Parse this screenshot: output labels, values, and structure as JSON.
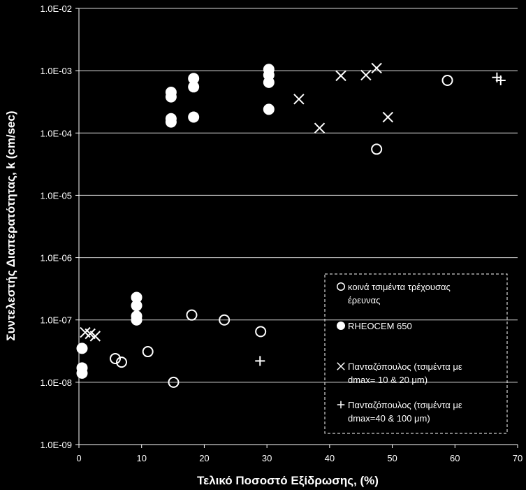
{
  "chart_data": {
    "type": "scatter",
    "title": "",
    "xlabel": "Τελικό Ποσοστό Εξίδρωσης, (%)",
    "ylabel": "Συντελεστής Διαπερατότητας, k (cm/sec)",
    "xlim": [
      0,
      70
    ],
    "ylim": [
      1e-09,
      0.01
    ],
    "yscale": "log",
    "grid": "horizontal",
    "legend_position": "bottom-right",
    "x_ticks": [
      "0",
      "10",
      "20",
      "30",
      "40",
      "50",
      "60",
      "70"
    ],
    "y_ticks": [
      "1.0E-09",
      "1.0E-08",
      "1.0E-07",
      "1.0E-06",
      "1.0E-05",
      "1.0E-04",
      "1.0E-03",
      "1.0E-02"
    ],
    "series": [
      {
        "name": "κοινά τσιμέντα τρέχουσας έρευνας",
        "legend_lines": [
          "κοινά τσιμέντα τρέχουσας",
          "έρευνας"
        ],
        "marker": "open-circle",
        "points": [
          [
            5.8,
            2.4e-08
          ],
          [
            6.8,
            2.1e-08
          ],
          [
            11.0,
            3.1e-08
          ],
          [
            15.1,
            1e-08
          ],
          [
            18.0,
            1.2e-07
          ],
          [
            23.2,
            1e-07
          ],
          [
            29.0,
            6.5e-08
          ],
          [
            47.5,
            5.5e-05
          ],
          [
            58.8,
            0.0007
          ]
        ]
      },
      {
        "name": "RHEOCEM 650",
        "legend_lines": [
          "RHEOCEM 650"
        ],
        "marker": "filled-circle",
        "points": [
          [
            0.5,
            3.5e-08
          ],
          [
            0.5,
            1.7e-08
          ],
          [
            0.5,
            1.4e-08
          ],
          [
            9.2,
            2.3e-07
          ],
          [
            9.2,
            1.7e-07
          ],
          [
            9.2,
            1.15e-07
          ],
          [
            9.2,
            1e-07
          ],
          [
            14.7,
            0.00045
          ],
          [
            14.7,
            0.00038
          ],
          [
            14.7,
            0.00017
          ],
          [
            14.7,
            0.00015
          ],
          [
            18.3,
            0.00075
          ],
          [
            18.3,
            0.00055
          ],
          [
            18.3,
            0.00018
          ],
          [
            30.3,
            0.00105
          ],
          [
            30.3,
            0.00085
          ],
          [
            30.3,
            0.00065
          ],
          [
            30.3,
            0.00024
          ]
        ]
      },
      {
        "name": "Πανταζόπουλος (τσιμέντα με dmax= 10 & 20 μm)",
        "legend_lines": [
          "Πανταζόπουλος (τσιμέντα με",
          "dmax= 10 & 20 μm)"
        ],
        "marker": "x",
        "points": [
          [
            1.0,
            6.3e-08
          ],
          [
            1.8,
            6e-08
          ],
          [
            2.6,
            5.5e-08
          ],
          [
            35.1,
            0.00035
          ],
          [
            38.4,
            0.00012
          ],
          [
            41.8,
            0.00083
          ],
          [
            45.8,
            0.00085
          ],
          [
            47.5,
            0.0011
          ],
          [
            49.3,
            0.00018
          ]
        ]
      },
      {
        "name": "Πανταζόπουλος (τσιμέντα με dmax=40 & 100 μm)",
        "legend_lines": [
          "Πανταζόπουλος (τσιμέντα με",
          "dmax=40 & 100 μm)"
        ],
        "marker": "plus",
        "points": [
          [
            28.9,
            2.2e-08
          ],
          [
            66.7,
            0.00078
          ],
          [
            67.3,
            0.0007
          ]
        ]
      }
    ]
  }
}
